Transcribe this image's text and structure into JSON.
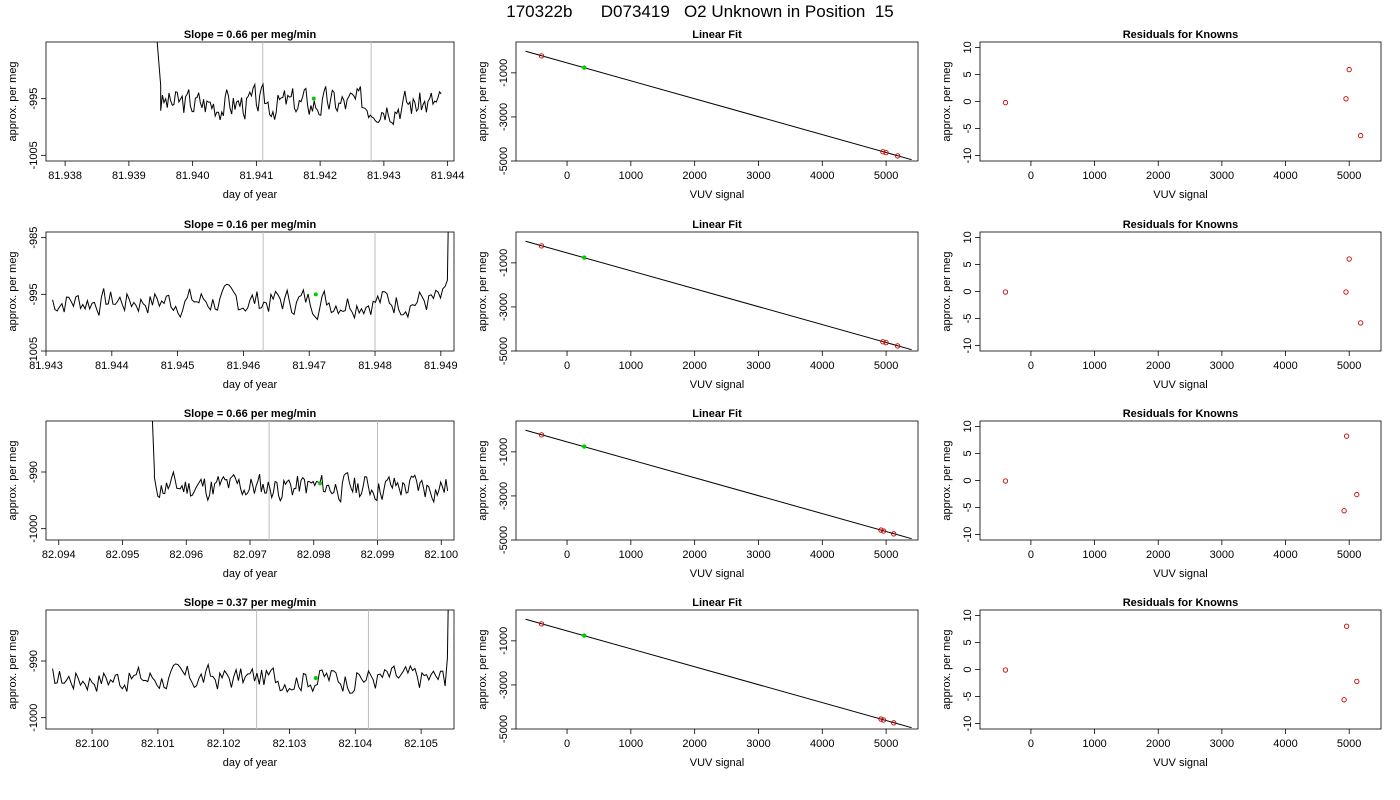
{
  "figure": {
    "title": "170322b      D073419   O2 Unknown in Position  15"
  },
  "labels": {
    "day_of_year": "day of year",
    "approx_per_meg": "approx. per meg",
    "vuv_signal": "VUV signal",
    "linear_fit": "Linear Fit",
    "residuals": "Residuals for Knowns"
  },
  "colors": {
    "line": "#000000",
    "highlight": "#00cc00",
    "known_point": "#cc0000",
    "vline": "#bebebe"
  },
  "chart_data": [
    {
      "type": "line",
      "row": 1,
      "title": "Slope =  0.66  per meg/min",
      "xlabel": "day of year",
      "ylabel": "approx. per meg",
      "xlim": [
        81.9377,
        81.9441
      ],
      "ylim": [
        -1006,
        -985
      ],
      "xticks": [
        "81.938",
        "81.939",
        "81.940",
        "81.941",
        "81.942",
        "81.943",
        "81.944"
      ],
      "xtick_values": [
        81.938,
        81.939,
        81.94,
        81.941,
        81.942,
        81.943,
        81.944
      ],
      "yticks": [
        "-1005",
        "-995"
      ],
      "ytick_values": [
        -1005,
        -995
      ],
      "series": [
        {
          "x_start": 81.9393,
          "x_end": 81.9439,
          "spike_end": 81.9395,
          "base": -995.8,
          "amplitude": 2.6,
          "seed": 3
        }
      ],
      "vlines": [
        81.9411,
        81.9428
      ],
      "highlight_point": {
        "x": 81.9419,
        "y": -995
      },
      "grid": false
    },
    {
      "type": "scatter",
      "row": 1,
      "title": "Linear Fit",
      "xlabel": "VUV signal",
      "ylabel": "approx. per meg",
      "xlim": [
        -800,
        5500
      ],
      "ylim": [
        -5000,
        400
      ],
      "xticks": [
        "0",
        "1000",
        "2000",
        "3000",
        "4000",
        "5000"
      ],
      "xtick_values": [
        0,
        1000,
        2000,
        3000,
        4000,
        5000
      ],
      "yticks": [
        "-5000",
        "-3000",
        "-1000"
      ],
      "ytick_values": [
        -5000,
        -3000,
        -1000
      ],
      "fit_line": {
        "x": [
          -650,
          5400
        ],
        "y": [
          -20,
          -4940
        ]
      },
      "known_points": [
        {
          "x": -400,
          "y": -230
        },
        {
          "x": 4950,
          "y": -4580
        },
        {
          "x": 5000,
          "y": -4620
        },
        {
          "x": 5180,
          "y": -4770
        }
      ],
      "unknown_point": {
        "x": 270,
        "y": -760
      },
      "grid": false
    },
    {
      "type": "scatter",
      "row": 1,
      "title": "Residuals for Knowns",
      "xlabel": "VUV signal",
      "ylabel": "",
      "xlim": [
        -800,
        5500
      ],
      "ylim": [
        -11,
        11
      ],
      "xticks": [
        "0",
        "1000",
        "2000",
        "3000",
        "4000",
        "5000"
      ],
      "xtick_values": [
        0,
        1000,
        2000,
        3000,
        4000,
        5000
      ],
      "yticks": [
        "-10",
        "-5",
        "0",
        "5",
        "10"
      ],
      "ytick_values": [
        -10,
        -5,
        0,
        5,
        10
      ],
      "points": [
        {
          "x": -400,
          "y": -0.2
        },
        {
          "x": 4950,
          "y": 0.5
        },
        {
          "x": 5000,
          "y": 5.9
        },
        {
          "x": 5180,
          "y": -6.3
        }
      ],
      "grid": false
    },
    {
      "type": "line",
      "row": 2,
      "title": "Slope =  0.16  per meg/min",
      "xlabel": "day of year",
      "ylabel": "approx. per meg",
      "xlim": [
        81.943,
        81.9492
      ],
      "ylim": [
        -1005,
        -984
      ],
      "xticks": [
        "81.943",
        "81.944",
        "81.945",
        "81.946",
        "81.947",
        "81.948",
        "81.949"
      ],
      "xtick_values": [
        81.943,
        81.944,
        81.945,
        81.946,
        81.947,
        81.948,
        81.949
      ],
      "yticks": [
        "-1005",
        "-995",
        "-985"
      ],
      "ytick_values": [
        -1005,
        -995,
        -985
      ],
      "series": [
        {
          "x_start": 81.9431,
          "x_end": 81.9491,
          "spike_end": null,
          "base": -996.2,
          "amplitude": 2.3,
          "seed": 7,
          "end_spike": true
        }
      ],
      "vlines": [
        81.9463,
        81.948
      ],
      "highlight_point": {
        "x": 81.9471,
        "y": -995
      },
      "grid": false
    },
    {
      "type": "scatter",
      "row": 2,
      "title": "Linear Fit",
      "xlabel": "VUV signal",
      "ylabel": "approx. per meg",
      "xlim": [
        -800,
        5500
      ],
      "ylim": [
        -5000,
        400
      ],
      "xticks": [
        "0",
        "1000",
        "2000",
        "3000",
        "4000",
        "5000"
      ],
      "xtick_values": [
        0,
        1000,
        2000,
        3000,
        4000,
        5000
      ],
      "yticks": [
        "-5000",
        "-3000",
        "-1000"
      ],
      "ytick_values": [
        -5000,
        -3000,
        -1000
      ],
      "fit_line": {
        "x": [
          -650,
          5400
        ],
        "y": [
          -20,
          -4940
        ]
      },
      "known_points": [
        {
          "x": -400,
          "y": -230
        },
        {
          "x": 4950,
          "y": -4580
        },
        {
          "x": 5000,
          "y": -4620
        },
        {
          "x": 5180,
          "y": -4770
        }
      ],
      "unknown_point": {
        "x": 270,
        "y": -760
      },
      "grid": false
    },
    {
      "type": "scatter",
      "row": 2,
      "title": "Residuals for Knowns",
      "xlabel": "VUV signal",
      "ylabel": "",
      "xlim": [
        -800,
        5500
      ],
      "ylim": [
        -11,
        11
      ],
      "xticks": [
        "0",
        "1000",
        "2000",
        "3000",
        "4000",
        "5000"
      ],
      "xtick_values": [
        0,
        1000,
        2000,
        3000,
        4000,
        5000
      ],
      "yticks": [
        "-10",
        "-5",
        "0",
        "5",
        "10"
      ],
      "ytick_values": [
        -10,
        -5,
        0,
        5,
        10
      ],
      "points": [
        {
          "x": -400,
          "y": -0.1
        },
        {
          "x": 4950,
          "y": -0.1
        },
        {
          "x": 5000,
          "y": 6.0
        },
        {
          "x": 5180,
          "y": -5.8
        }
      ],
      "grid": false
    },
    {
      "type": "line",
      "row": 3,
      "title": "Slope =  0.66  per meg/min",
      "xlabel": "day of year",
      "ylabel": "approx. per meg",
      "xlim": [
        82.0938,
        82.1002
      ],
      "ylim": [
        -1002,
        -981
      ],
      "xticks": [
        "82.094",
        "82.095",
        "82.096",
        "82.097",
        "82.098",
        "82.099",
        "82.100"
      ],
      "xtick_values": [
        82.094,
        82.095,
        82.096,
        82.097,
        82.098,
        82.099,
        82.1
      ],
      "yticks": [
        "-1000",
        "-990"
      ],
      "ytick_values": [
        -1000,
        -990
      ],
      "series": [
        {
          "x_start": 82.0954,
          "x_end": 82.1001,
          "spike_end": 82.0955,
          "base": -992.6,
          "amplitude": 2.3,
          "seed": 11
        }
      ],
      "vlines": [
        82.0973,
        82.099
      ],
      "highlight_point": {
        "x": 82.0981,
        "y": -992
      },
      "grid": false
    },
    {
      "type": "scatter",
      "row": 3,
      "title": "Linear Fit",
      "xlabel": "VUV signal",
      "ylabel": "approx. per meg",
      "xlim": [
        -800,
        5500
      ],
      "ylim": [
        -5000,
        400
      ],
      "xticks": [
        "0",
        "1000",
        "2000",
        "3000",
        "4000",
        "5000"
      ],
      "xtick_values": [
        0,
        1000,
        2000,
        3000,
        4000,
        5000
      ],
      "yticks": [
        "-5000",
        "-3000",
        "-1000"
      ],
      "ytick_values": [
        -5000,
        -3000,
        -1000
      ],
      "fit_line": {
        "x": [
          -650,
          5400
        ],
        "y": [
          -20,
          -4940
        ]
      },
      "known_points": [
        {
          "x": -400,
          "y": -230
        },
        {
          "x": 4920,
          "y": -4550
        },
        {
          "x": 4960,
          "y": -4590
        },
        {
          "x": 5120,
          "y": -4720
        }
      ],
      "unknown_point": {
        "x": 270,
        "y": -760
      },
      "grid": false
    },
    {
      "type": "scatter",
      "row": 3,
      "title": "Residuals for Knowns",
      "xlabel": "VUV signal",
      "ylabel": "",
      "xlim": [
        -800,
        5500
      ],
      "ylim": [
        -11,
        11
      ],
      "xticks": [
        "0",
        "1000",
        "2000",
        "3000",
        "4000",
        "5000"
      ],
      "xtick_values": [
        0,
        1000,
        2000,
        3000,
        4000,
        5000
      ],
      "yticks": [
        "-10",
        "-5",
        "0",
        "5",
        "10"
      ],
      "ytick_values": [
        -10,
        -5,
        0,
        5,
        10
      ],
      "points": [
        {
          "x": -400,
          "y": -0.1
        },
        {
          "x": 4920,
          "y": -5.6
        },
        {
          "x": 4960,
          "y": 8.2
        },
        {
          "x": 5120,
          "y": -2.6
        }
      ],
      "grid": false
    },
    {
      "type": "line",
      "row": 4,
      "title": "Slope =  0.37  per meg/min",
      "xlabel": "day of year",
      "ylabel": "approx. per meg",
      "xlim": [
        82.0993,
        82.1055
      ],
      "ylim": [
        -1002,
        -981
      ],
      "xticks": [
        "82.100",
        "82.101",
        "82.102",
        "82.103",
        "82.104",
        "82.105"
      ],
      "xtick_values": [
        82.1,
        82.101,
        82.102,
        82.103,
        82.104,
        82.105
      ],
      "yticks": [
        "-1000",
        "-990"
      ],
      "ytick_values": [
        -1000,
        -990
      ],
      "series": [
        {
          "x_start": 82.0994,
          "x_end": 82.1054,
          "spike_end": null,
          "base": -993.0,
          "amplitude": 2.2,
          "seed": 17,
          "end_spike": true
        }
      ],
      "vlines": [
        82.1025,
        82.1042
      ],
      "highlight_point": {
        "x": 82.1034,
        "y": -993
      },
      "grid": false
    },
    {
      "type": "scatter",
      "row": 4,
      "title": "Linear Fit",
      "xlabel": "VUV signal",
      "ylabel": "approx. per meg",
      "xlim": [
        -800,
        5500
      ],
      "ylim": [
        -5000,
        400
      ],
      "xticks": [
        "0",
        "1000",
        "2000",
        "3000",
        "4000",
        "5000"
      ],
      "xtick_values": [
        0,
        1000,
        2000,
        3000,
        4000,
        5000
      ],
      "yticks": [
        "-5000",
        "-3000",
        "-1000"
      ],
      "ytick_values": [
        -5000,
        -3000,
        -1000
      ],
      "fit_line": {
        "x": [
          -650,
          5400
        ],
        "y": [
          -20,
          -4940
        ]
      },
      "known_points": [
        {
          "x": -400,
          "y": -230
        },
        {
          "x": 4920,
          "y": -4550
        },
        {
          "x": 4960,
          "y": -4590
        },
        {
          "x": 5120,
          "y": -4720
        }
      ],
      "unknown_point": {
        "x": 270,
        "y": -760
      },
      "grid": false
    },
    {
      "type": "scatter",
      "row": 4,
      "title": "Residuals for Knowns",
      "xlabel": "VUV signal",
      "ylabel": "",
      "xlim": [
        -800,
        5500
      ],
      "ylim": [
        -11,
        11
      ],
      "xticks": [
        "0",
        "1000",
        "2000",
        "3000",
        "4000",
        "5000"
      ],
      "xtick_values": [
        0,
        1000,
        2000,
        3000,
        4000,
        5000
      ],
      "yticks": [
        "-10",
        "-5",
        "0",
        "5",
        "10"
      ],
      "ytick_values": [
        -10,
        -5,
        0,
        5,
        10
      ],
      "points": [
        {
          "x": -400,
          "y": -0.1
        },
        {
          "x": 4920,
          "y": -5.6
        },
        {
          "x": 4960,
          "y": 8.0
        },
        {
          "x": 5120,
          "y": -2.2
        }
      ],
      "grid": false
    }
  ]
}
